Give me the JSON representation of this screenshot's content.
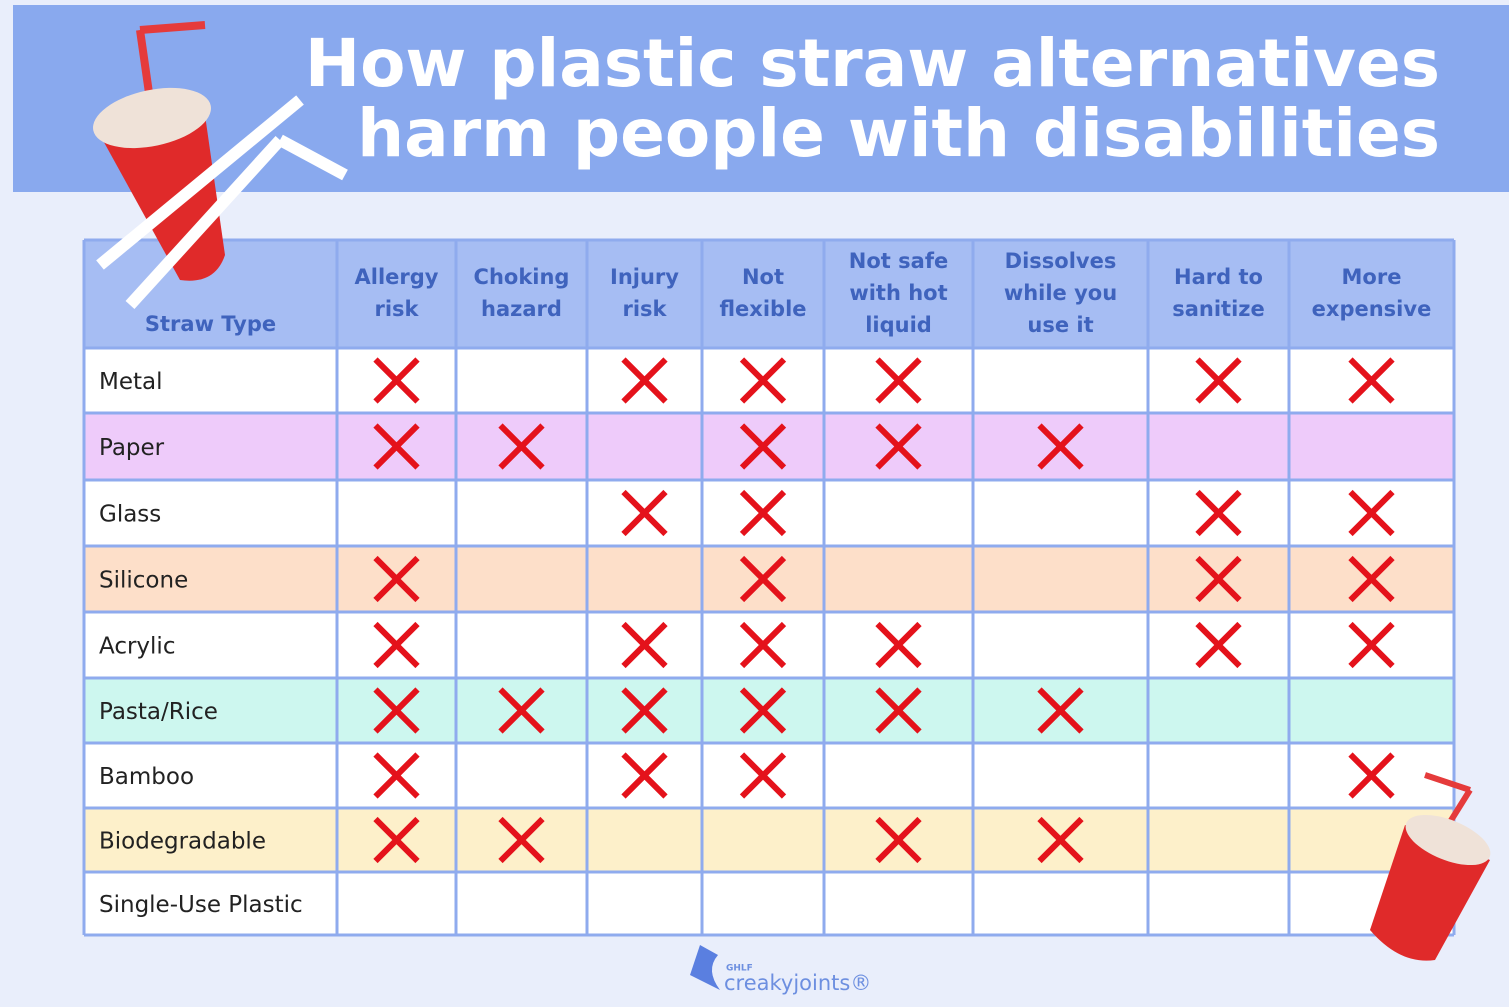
{
  "header": {
    "title_lines": [
      "How plastic straw alternatives",
      "harm people with disabilities"
    ]
  },
  "table": {
    "columns": [
      [
        "Straw Type"
      ],
      [
        "Allergy",
        "risk"
      ],
      [
        "Choking",
        "hazard"
      ],
      [
        "Injury",
        "risk"
      ],
      [
        "Not",
        "flexible"
      ],
      [
        "Not safe",
        "with hot",
        "liquid"
      ],
      [
        "Dissolves",
        "while you",
        "use it"
      ],
      [
        "Hard to",
        "sanitize"
      ],
      [
        "More",
        "expensive"
      ]
    ],
    "rows": [
      {
        "label": "Metal",
        "fill": "#ffffff",
        "marks": [
          true,
          false,
          true,
          true,
          true,
          false,
          true,
          true
        ]
      },
      {
        "label": "Paper",
        "fill": "#eecbfa",
        "marks": [
          true,
          true,
          false,
          true,
          true,
          true,
          false,
          false
        ]
      },
      {
        "label": "Glass",
        "fill": "#ffffff",
        "marks": [
          false,
          false,
          true,
          true,
          false,
          false,
          true,
          true
        ]
      },
      {
        "label": "Silicone",
        "fill": "#fddfc9",
        "marks": [
          true,
          false,
          false,
          true,
          false,
          false,
          true,
          true
        ]
      },
      {
        "label": "Acrylic",
        "fill": "#ffffff",
        "marks": [
          true,
          false,
          true,
          true,
          true,
          false,
          true,
          true
        ]
      },
      {
        "label": "Pasta/Rice",
        "fill": "#cdf7ef",
        "marks": [
          true,
          true,
          true,
          true,
          true,
          true,
          false,
          false
        ]
      },
      {
        "label": "Bamboo",
        "fill": "#ffffff",
        "marks": [
          true,
          false,
          true,
          true,
          false,
          false,
          false,
          true
        ]
      },
      {
        "label": "Biodegradable",
        "fill": "#fdf0ca",
        "marks": [
          true,
          true,
          false,
          false,
          true,
          true,
          false,
          false
        ]
      },
      {
        "label": "Single-Use Plastic",
        "fill": "#ffffff",
        "marks": [
          false,
          false,
          false,
          false,
          false,
          false,
          false,
          false
        ]
      }
    ]
  },
  "footer": {
    "logo_small": "GHLF",
    "logo": "creakyjoints®"
  }
}
